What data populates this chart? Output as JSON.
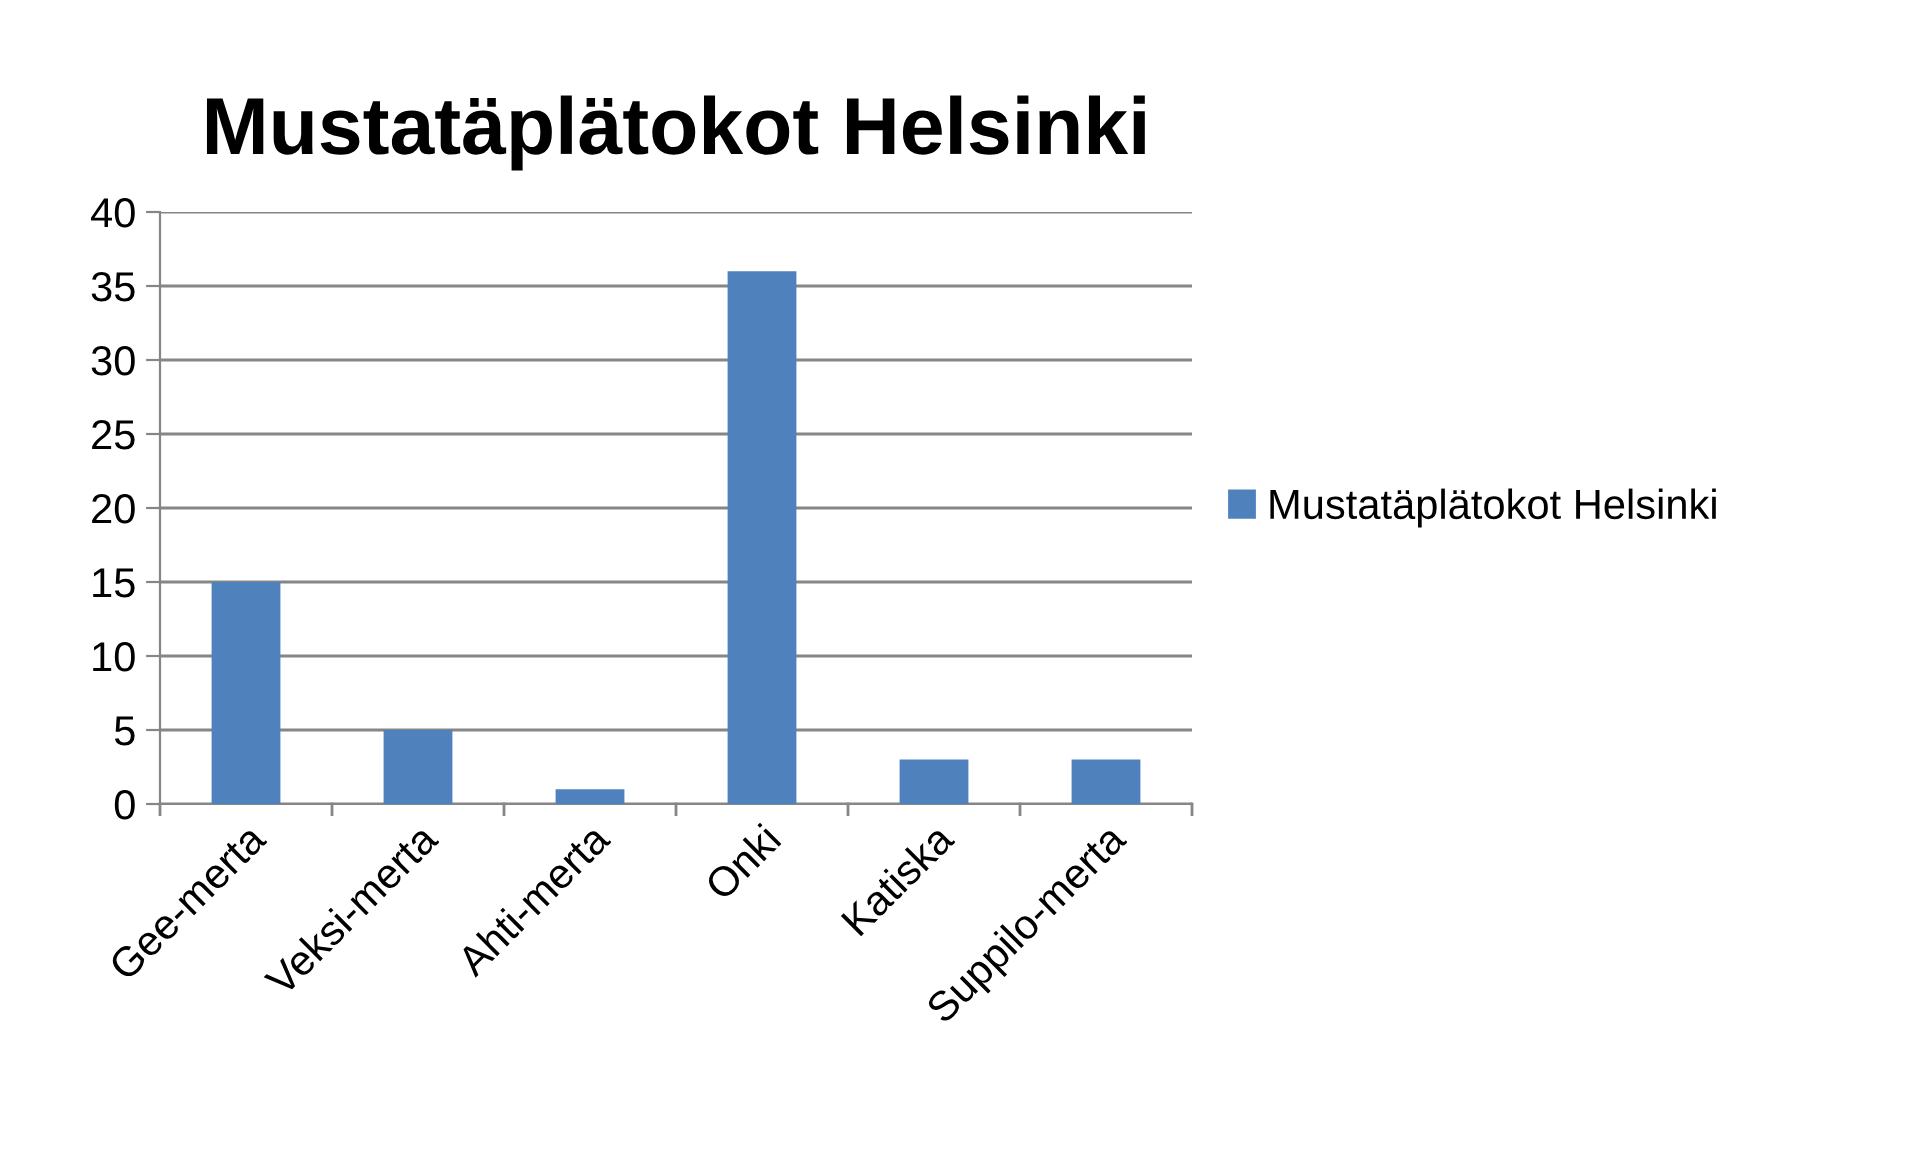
{
  "chart_data": {
    "type": "bar",
    "title": "Mustatäplätokot Helsinki",
    "categories": [
      "Gee-merta",
      "Veksi-merta",
      "Ahti-merta",
      "Onki",
      "Katiska",
      "Suppilo-merta"
    ],
    "series": [
      {
        "name": "Mustatäplätokot Helsinki",
        "color": "#4f81bd",
        "values": [
          15,
          5,
          1,
          36,
          3,
          3
        ]
      }
    ],
    "ylim": [
      0,
      40
    ],
    "yticks": [
      0,
      5,
      10,
      15,
      20,
      25,
      30,
      35,
      40
    ],
    "grid": "y",
    "legend": "right"
  }
}
